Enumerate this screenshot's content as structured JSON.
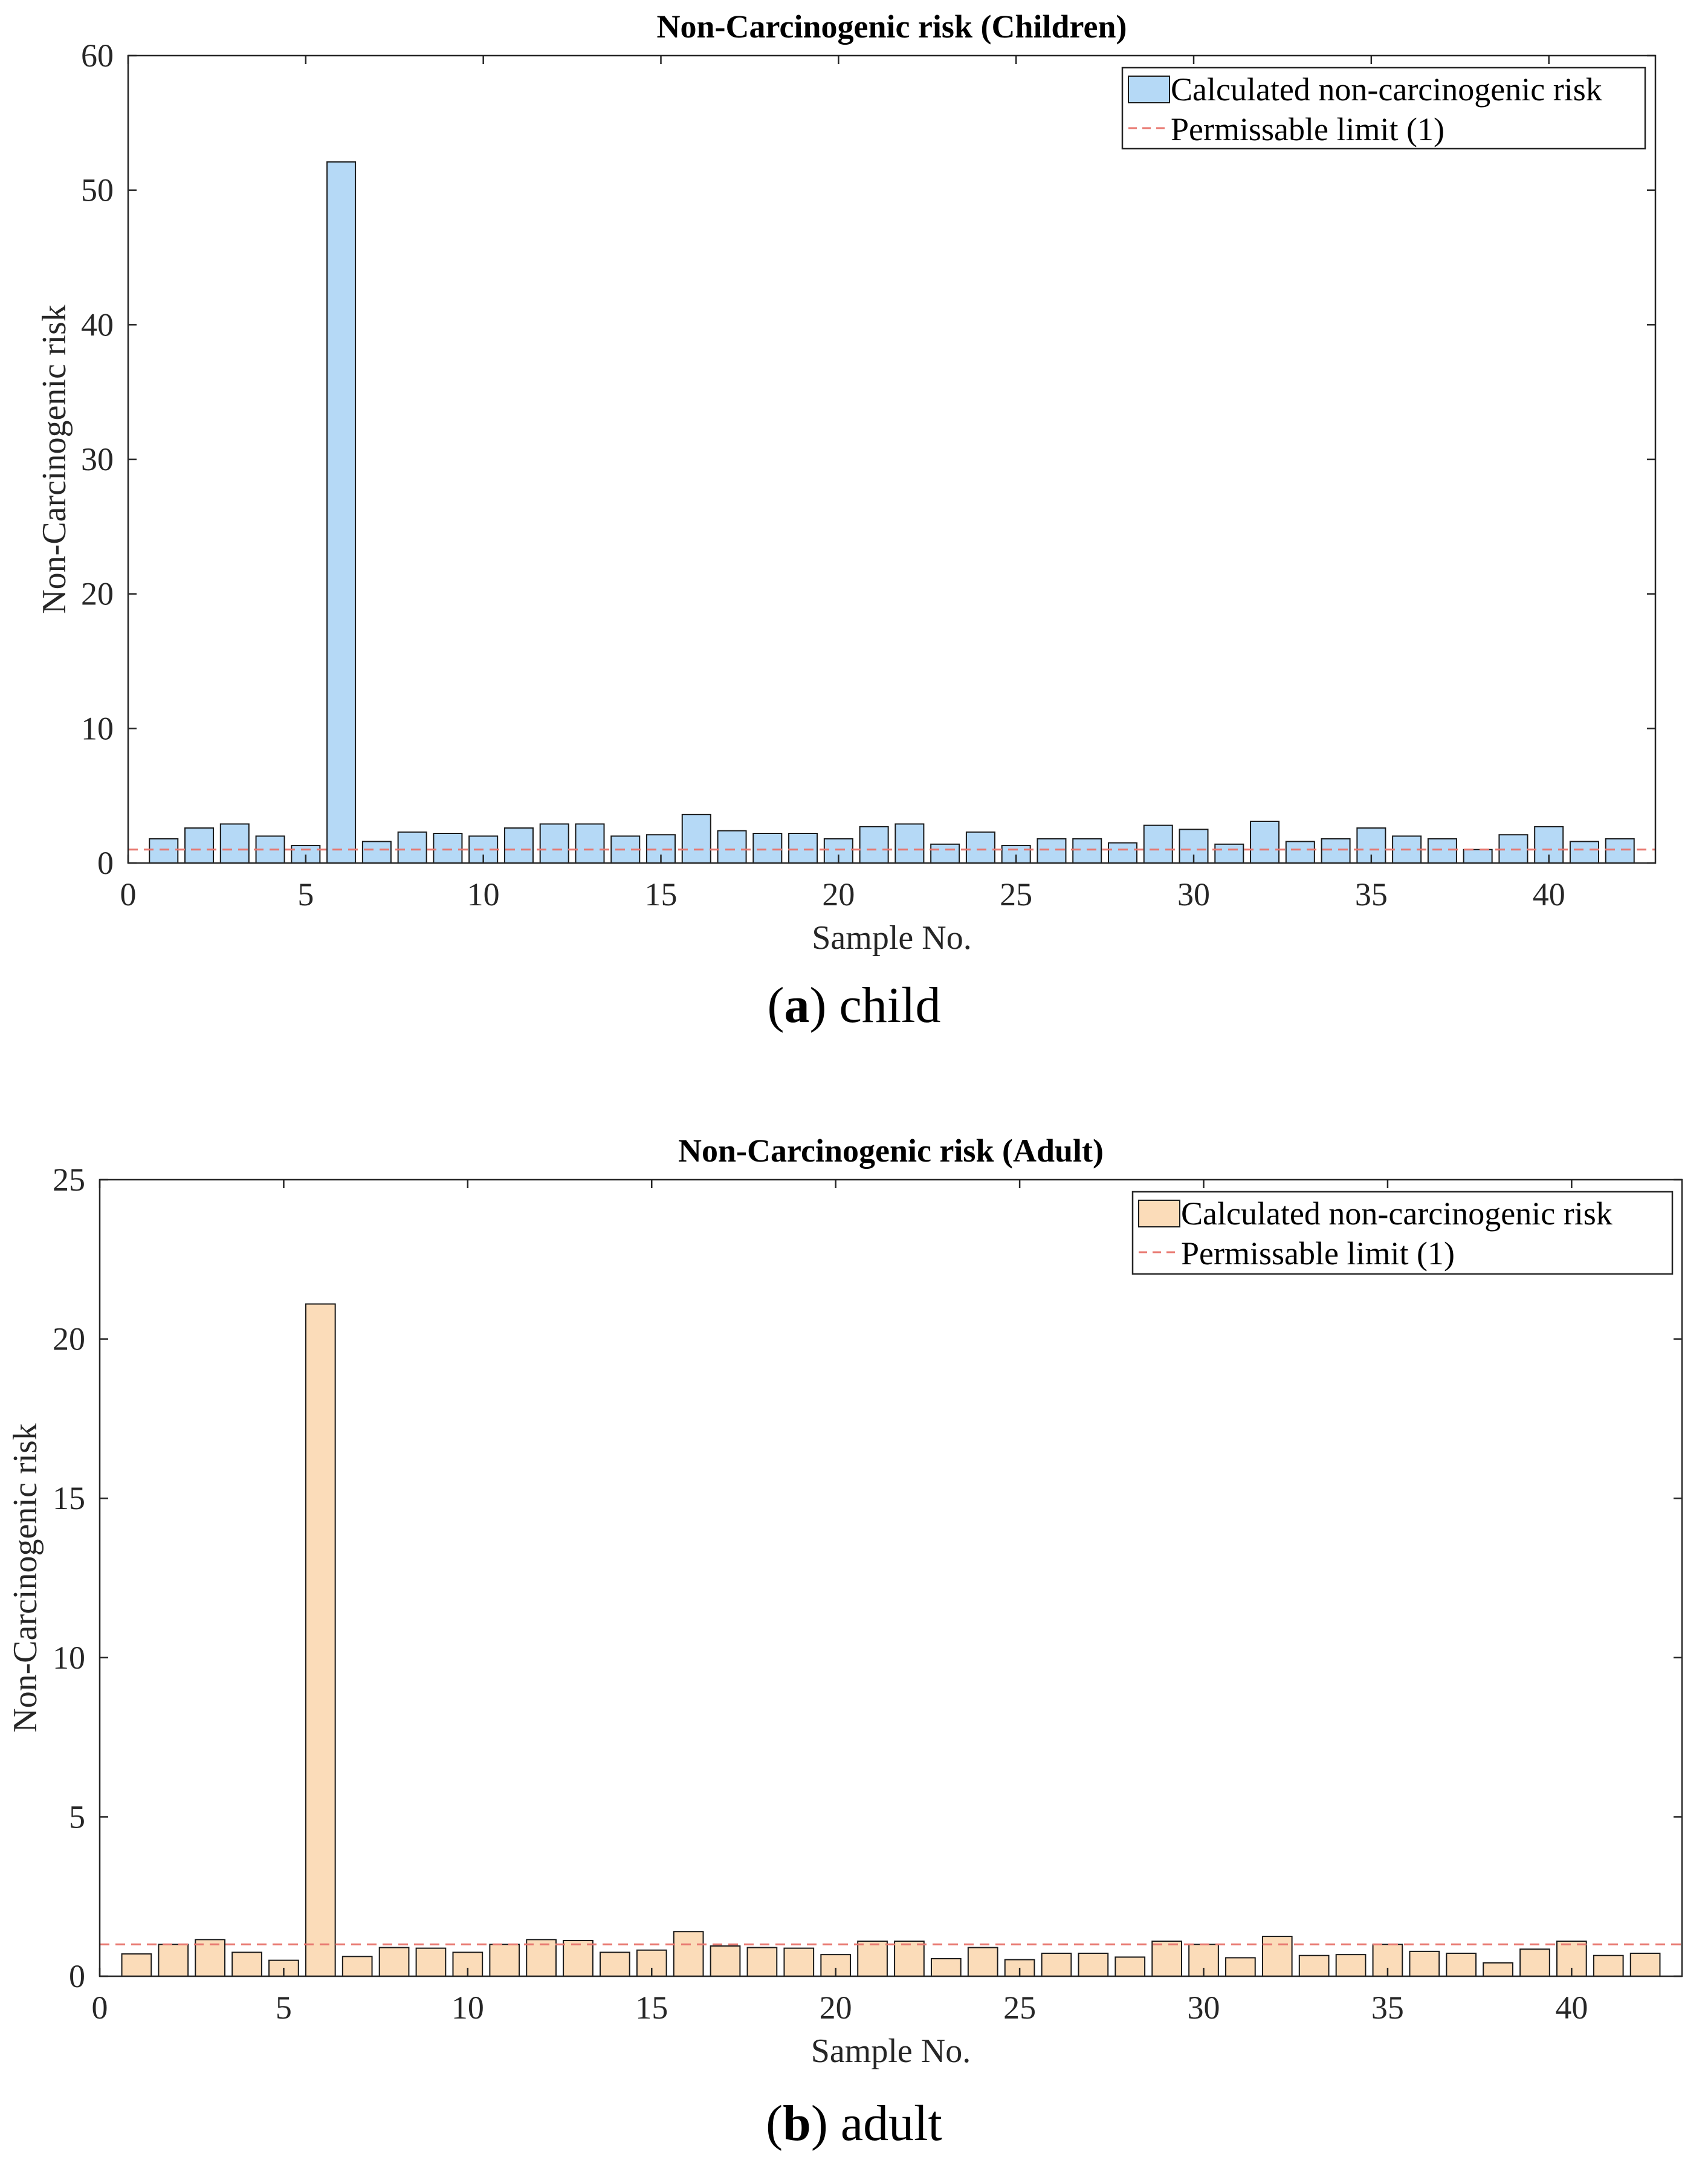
{
  "chart_data": [
    {
      "type": "bar",
      "title": "Non-Carcinogenic risk (Children)",
      "xlabel": "Sample No.",
      "ylabel": "Non-Carcinogenic risk",
      "xlim": [
        0,
        43
      ],
      "ylim": [
        0,
        60
      ],
      "xticks": [
        0,
        5,
        10,
        15,
        20,
        25,
        30,
        35,
        40
      ],
      "yticks": [
        0,
        10,
        20,
        30,
        40,
        50,
        60
      ],
      "legend_position": "top-right",
      "bar_color": "#b5d9f6",
      "limit_color": "#e8776f",
      "series": [
        {
          "name": "Calculated non-carcinogenic risk",
          "x": [
            1,
            2,
            3,
            4,
            5,
            6,
            7,
            8,
            9,
            10,
            11,
            12,
            13,
            14,
            15,
            16,
            17,
            18,
            19,
            20,
            21,
            22,
            23,
            24,
            25,
            26,
            27,
            28,
            29,
            30,
            31,
            32,
            33,
            34,
            35,
            36,
            37,
            38,
            39,
            40,
            41,
            42
          ],
          "values": [
            1.8,
            2.6,
            2.9,
            2.0,
            1.3,
            52.1,
            1.6,
            2.3,
            2.2,
            2.0,
            2.6,
            2.9,
            2.9,
            2.0,
            2.1,
            3.6,
            2.4,
            2.2,
            2.2,
            1.8,
            2.7,
            2.9,
            1.4,
            2.3,
            1.3,
            1.8,
            1.8,
            1.5,
            2.8,
            2.5,
            1.4,
            3.1,
            1.6,
            1.8,
            2.6,
            2.0,
            1.8,
            1.0,
            2.1,
            2.7,
            1.6,
            1.8
          ]
        },
        {
          "name": "Permissable limit (1)",
          "type": "line",
          "values": [
            1
          ]
        }
      ]
    },
    {
      "type": "bar",
      "title": "Non-Carcinogenic risk (Adult)",
      "xlabel": "Sample No.",
      "ylabel": "Non-Carcinogenic risk",
      "xlim": [
        0,
        43
      ],
      "ylim": [
        0,
        25
      ],
      "xticks": [
        0,
        5,
        10,
        15,
        20,
        25,
        30,
        35,
        40
      ],
      "yticks": [
        0,
        5,
        10,
        15,
        20,
        25
      ],
      "legend_position": "top-right",
      "bar_color": "#fbdcb9",
      "limit_color": "#e8776f",
      "series": [
        {
          "name": "Calculated non-carcinogenic risk",
          "x": [
            1,
            2,
            3,
            4,
            5,
            6,
            7,
            8,
            9,
            10,
            11,
            12,
            13,
            14,
            15,
            16,
            17,
            18,
            19,
            20,
            21,
            22,
            23,
            24,
            25,
            26,
            27,
            28,
            29,
            30,
            31,
            32,
            33,
            34,
            35,
            36,
            37,
            38,
            39,
            40,
            41,
            42
          ],
          "values": [
            0.7,
            1.0,
            1.15,
            0.75,
            0.5,
            21.1,
            0.62,
            0.9,
            0.88,
            0.75,
            1.0,
            1.15,
            1.12,
            0.75,
            0.82,
            1.4,
            0.95,
            0.9,
            0.88,
            0.68,
            1.1,
            1.1,
            0.55,
            0.9,
            0.52,
            0.72,
            0.72,
            0.6,
            1.1,
            1.0,
            0.58,
            1.25,
            0.65,
            0.68,
            1.0,
            0.78,
            0.72,
            0.42,
            0.85,
            1.1,
            0.65,
            0.72
          ]
        },
        {
          "name": "Permissable limit (1)",
          "type": "line",
          "values": [
            1
          ]
        }
      ]
    }
  ],
  "captions": [
    {
      "letter": "a",
      "text": " child"
    },
    {
      "letter": "b",
      "text": " adult"
    }
  ]
}
